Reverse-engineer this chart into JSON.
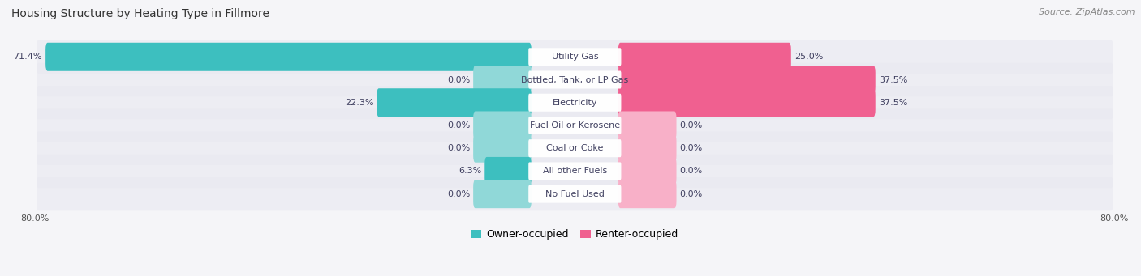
{
  "title": "Housing Structure by Heating Type in Fillmore",
  "source": "Source: ZipAtlas.com",
  "categories": [
    "Utility Gas",
    "Bottled, Tank, or LP Gas",
    "Electricity",
    "Fuel Oil or Kerosene",
    "Coal or Coke",
    "All other Fuels",
    "No Fuel Used"
  ],
  "owner_values": [
    71.4,
    0.0,
    22.3,
    0.0,
    0.0,
    6.3,
    0.0
  ],
  "renter_values": [
    25.0,
    37.5,
    37.5,
    0.0,
    0.0,
    0.0,
    0.0
  ],
  "owner_color": "#3dbfbf",
  "owner_stub_color": "#90d8d8",
  "renter_color": "#f06090",
  "renter_stub_color": "#f8b0c8",
  "row_bg_color": "#e8e8f0",
  "fig_bg_color": "#f5f5f8",
  "label_bg_color": "#ffffff",
  "label_text_color": "#404060",
  "value_text_color": "#404060",
  "axis_max": 80.0,
  "stub_size": 8.0,
  "owner_label": "Owner-occupied",
  "renter_label": "Renter-occupied",
  "title_fontsize": 10,
  "source_fontsize": 8,
  "tick_fontsize": 8,
  "label_fontsize": 8,
  "value_fontsize": 8
}
